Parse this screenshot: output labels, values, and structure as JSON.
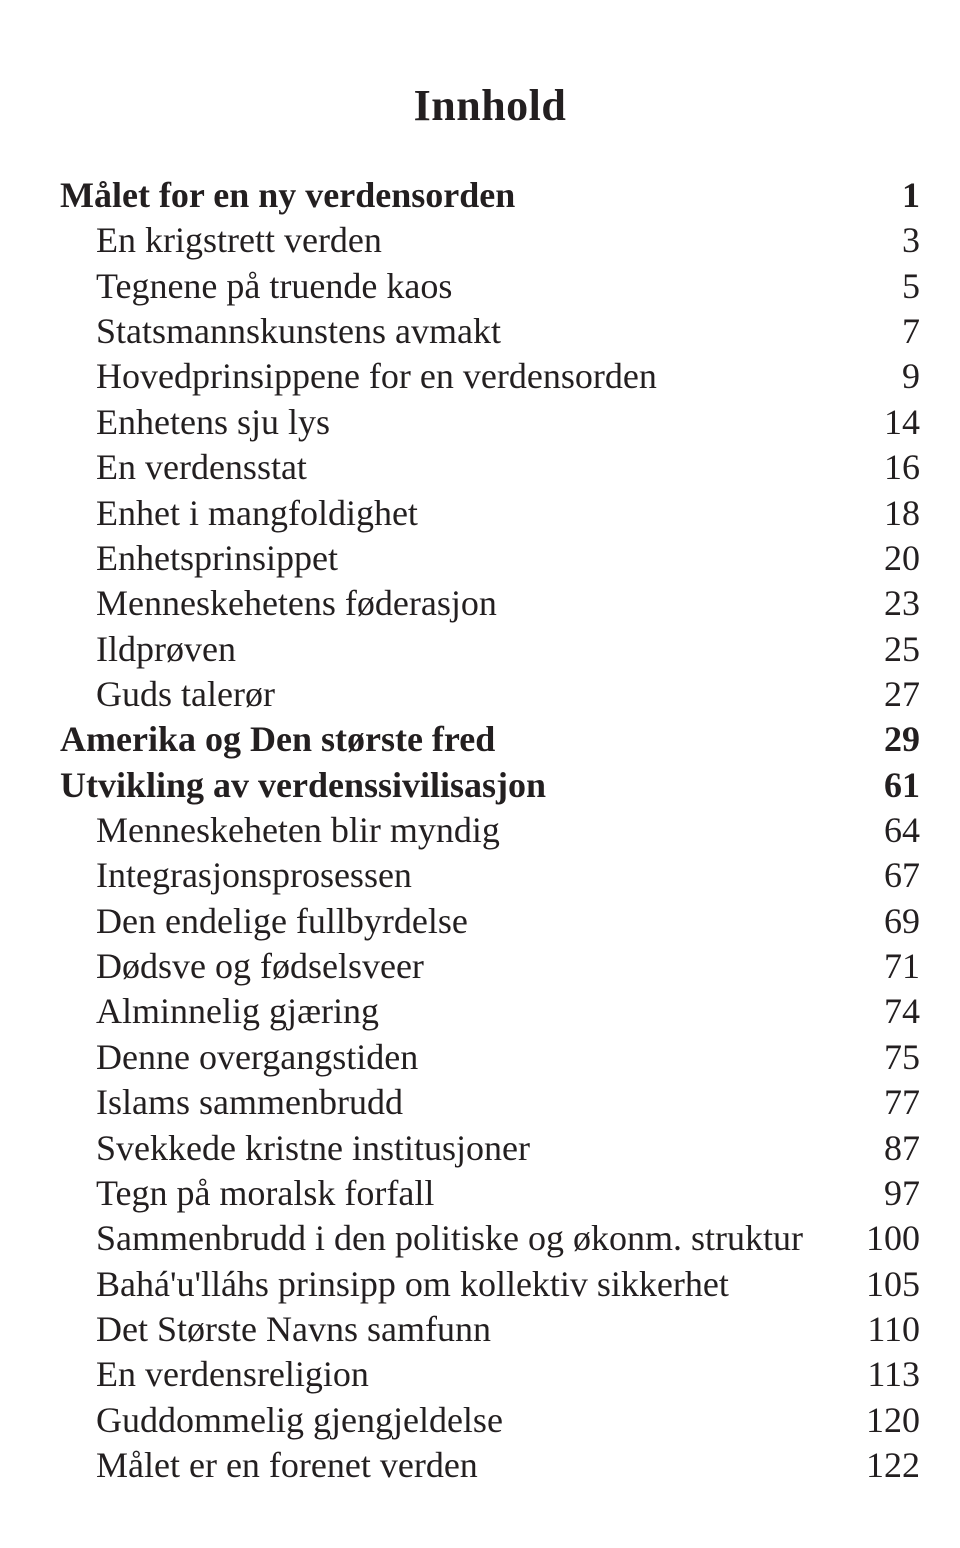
{
  "title": "Innhold",
  "entries": [
    {
      "label": "Målet for en ny verdensorden",
      "page": "1",
      "bold": true,
      "indent": false
    },
    {
      "label": "En krigstrett verden",
      "page": "3",
      "bold": false,
      "indent": true
    },
    {
      "label": "Tegnene på truende kaos",
      "page": "5",
      "bold": false,
      "indent": true
    },
    {
      "label": "Statsmannskunstens avmakt",
      "page": "7",
      "bold": false,
      "indent": true
    },
    {
      "label": "Hovedprinsippene for en verdensorden",
      "page": "9",
      "bold": false,
      "indent": true
    },
    {
      "label": "Enhetens sju lys",
      "page": "14",
      "bold": false,
      "indent": true
    },
    {
      "label": "En verdensstat",
      "page": "16",
      "bold": false,
      "indent": true
    },
    {
      "label": "Enhet i mangfoldighet",
      "page": "18",
      "bold": false,
      "indent": true
    },
    {
      "label": "Enhetsprinsippet",
      "page": "20",
      "bold": false,
      "indent": true
    },
    {
      "label": "Menneskehetens føderasjon",
      "page": "23",
      "bold": false,
      "indent": true
    },
    {
      "label": "Ildprøven",
      "page": "25",
      "bold": false,
      "indent": true
    },
    {
      "label": "Guds talerør",
      "page": "27",
      "bold": false,
      "indent": true
    },
    {
      "label": "Amerika og Den største fred",
      "page": "29",
      "bold": true,
      "indent": false
    },
    {
      "label": "Utvikling av verdenssivilisasjon",
      "page": "61",
      "bold": true,
      "indent": false
    },
    {
      "label": "Menneskeheten blir myndig",
      "page": "64",
      "bold": false,
      "indent": true
    },
    {
      "label": "Integrasjonsprosessen",
      "page": "67",
      "bold": false,
      "indent": true
    },
    {
      "label": "Den endelige fullbyrdelse",
      "page": "69",
      "bold": false,
      "indent": true
    },
    {
      "label": "Dødsve og fødselsveer",
      "page": "71",
      "bold": false,
      "indent": true
    },
    {
      "label": "Alminnelig gjæring",
      "page": "74",
      "bold": false,
      "indent": true
    },
    {
      "label": "Denne overgangstiden",
      "page": "75",
      "bold": false,
      "indent": true
    },
    {
      "label": "Islams sammenbrudd",
      "page": "77",
      "bold": false,
      "indent": true
    },
    {
      "label": "Svekkede kristne institusjoner",
      "page": "87",
      "bold": false,
      "indent": true
    },
    {
      "label": "Tegn på moralsk forfall",
      "page": "97",
      "bold": false,
      "indent": true
    },
    {
      "label": "Sammenbrudd i den politiske og økonm. struktur",
      "page": "100",
      "bold": false,
      "indent": true
    },
    {
      "label": "Bahá'u'lláhs prinsipp om kollektiv sikkerhet",
      "page": "105",
      "bold": false,
      "indent": true
    },
    {
      "label": "Det Største Navns samfunn",
      "page": "110",
      "bold": false,
      "indent": true
    },
    {
      "label": "En verdensreligion",
      "page": "113",
      "bold": false,
      "indent": true
    },
    {
      "label": "Guddommelig gjengjeldelse",
      "page": "120",
      "bold": false,
      "indent": true
    },
    {
      "label": "Målet er en forenet verden",
      "page": "122",
      "bold": false,
      "indent": true
    }
  ]
}
